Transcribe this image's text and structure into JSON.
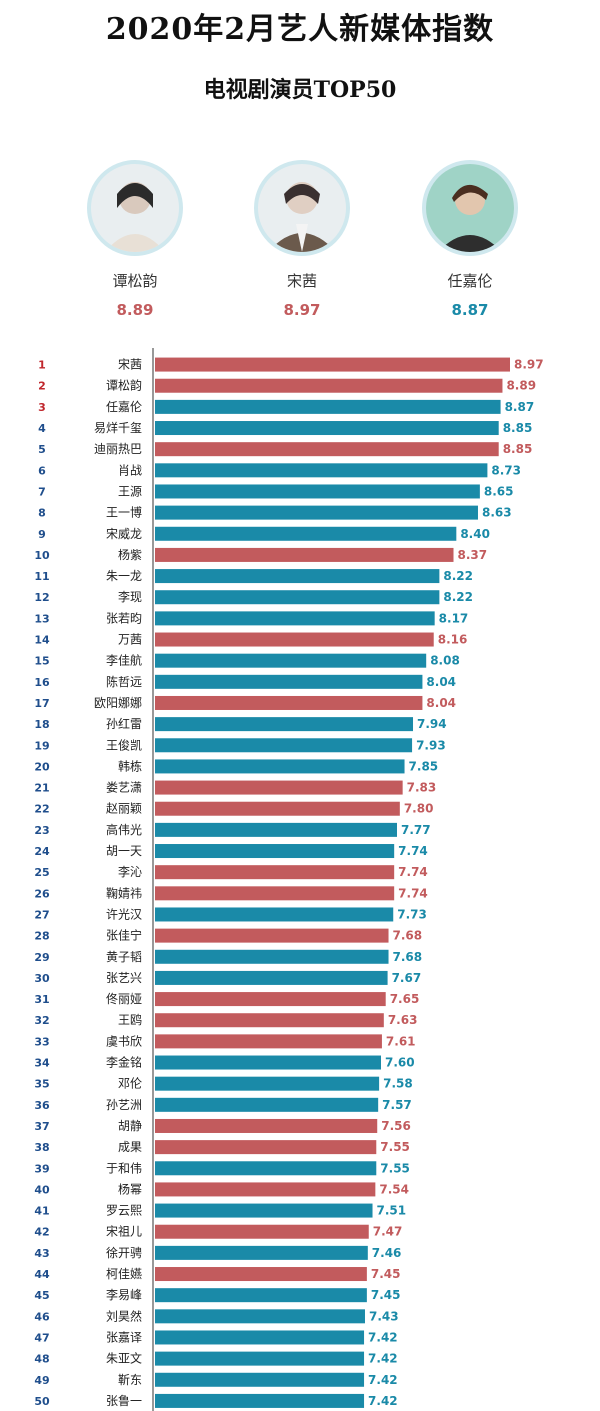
{
  "header": {
    "title": "2020年2月艺人新媒体指数",
    "subtitle": "电视剧演员TOP50"
  },
  "colors": {
    "red": "#c25b5d",
    "teal": "#1a8aa8"
  },
  "podium": [
    {
      "name": "谭松韵",
      "score": "8.89",
      "color": "red"
    },
    {
      "name": "宋茜",
      "score": "8.97",
      "color": "red"
    },
    {
      "name": "任嘉伦",
      "score": "8.87",
      "color": "teal"
    }
  ],
  "chart_data": {
    "type": "bar",
    "orientation": "horizontal",
    "title": "电视剧演员TOP50",
    "xlim": [
      0,
      8.97
    ],
    "categories": [
      "宋茜",
      "谭松韵",
      "任嘉伦",
      "易烊千玺",
      "迪丽热巴",
      "肖战",
      "王源",
      "王一博",
      "宋威龙",
      "杨紫",
      "朱一龙",
      "李现",
      "张若昀",
      "万茜",
      "李佳航",
      "陈哲远",
      "欧阳娜娜",
      "孙红雷",
      "王俊凯",
      "韩栋",
      "娄艺潇",
      "赵丽颖",
      "高伟光",
      "胡一天",
      "李沁",
      "鞠婧祎",
      "许光汉",
      "张佳宁",
      "黄子韬",
      "张艺兴",
      "佟丽娅",
      "王鸥",
      "虞书欣",
      "李金铭",
      "邓伦",
      "孙艺洲",
      "胡静",
      "成果",
      "于和伟",
      "杨幂",
      "罗云熙",
      "宋祖儿",
      "徐开骋",
      "柯佳嬿",
      "李易峰",
      "刘昊然",
      "张嘉译",
      "朱亚文",
      "靳东",
      "张鲁一"
    ],
    "values": [
      8.97,
      8.89,
      8.87,
      8.85,
      8.85,
      8.73,
      8.65,
      8.63,
      8.4,
      8.37,
      8.22,
      8.22,
      8.17,
      8.16,
      8.08,
      8.04,
      8.04,
      7.94,
      7.93,
      7.85,
      7.83,
      7.8,
      7.77,
      7.74,
      7.74,
      7.74,
      7.73,
      7.68,
      7.68,
      7.67,
      7.65,
      7.63,
      7.61,
      7.6,
      7.58,
      7.57,
      7.56,
      7.55,
      7.55,
      7.54,
      7.51,
      7.47,
      7.46,
      7.45,
      7.45,
      7.43,
      7.42,
      7.42,
      7.42,
      7.42
    ],
    "value_labels": [
      "8.97",
      "8.89",
      "8.87",
      "8.85",
      "8.85",
      "8.73",
      "8.65",
      "8.63",
      "8.40",
      "8.37",
      "8.22",
      "8.22",
      "8.17",
      "8.16",
      "8.08",
      "8.04",
      "8.04",
      "7.94",
      "7.93",
      "7.85",
      "7.83",
      "7.80",
      "7.77",
      "7.74",
      "7.74",
      "7.74",
      "7.73",
      "7.68",
      "7.68",
      "7.67",
      "7.65",
      "7.63",
      "7.61",
      "7.60",
      "7.58",
      "7.57",
      "7.56",
      "7.55",
      "7.55",
      "7.54",
      "7.51",
      "7.47",
      "7.46",
      "7.45",
      "7.45",
      "7.43",
      "7.42",
      "7.42",
      "7.42",
      "7.42"
    ],
    "bar_colors": [
      "red",
      "red",
      "teal",
      "teal",
      "red",
      "teal",
      "teal",
      "teal",
      "teal",
      "red",
      "teal",
      "teal",
      "teal",
      "red",
      "teal",
      "teal",
      "red",
      "teal",
      "teal",
      "teal",
      "red",
      "red",
      "teal",
      "teal",
      "red",
      "red",
      "teal",
      "red",
      "teal",
      "teal",
      "red",
      "red",
      "red",
      "teal",
      "teal",
      "teal",
      "red",
      "red",
      "teal",
      "red",
      "teal",
      "red",
      "teal",
      "red",
      "teal",
      "teal",
      "teal",
      "teal",
      "teal",
      "teal"
    ]
  }
}
